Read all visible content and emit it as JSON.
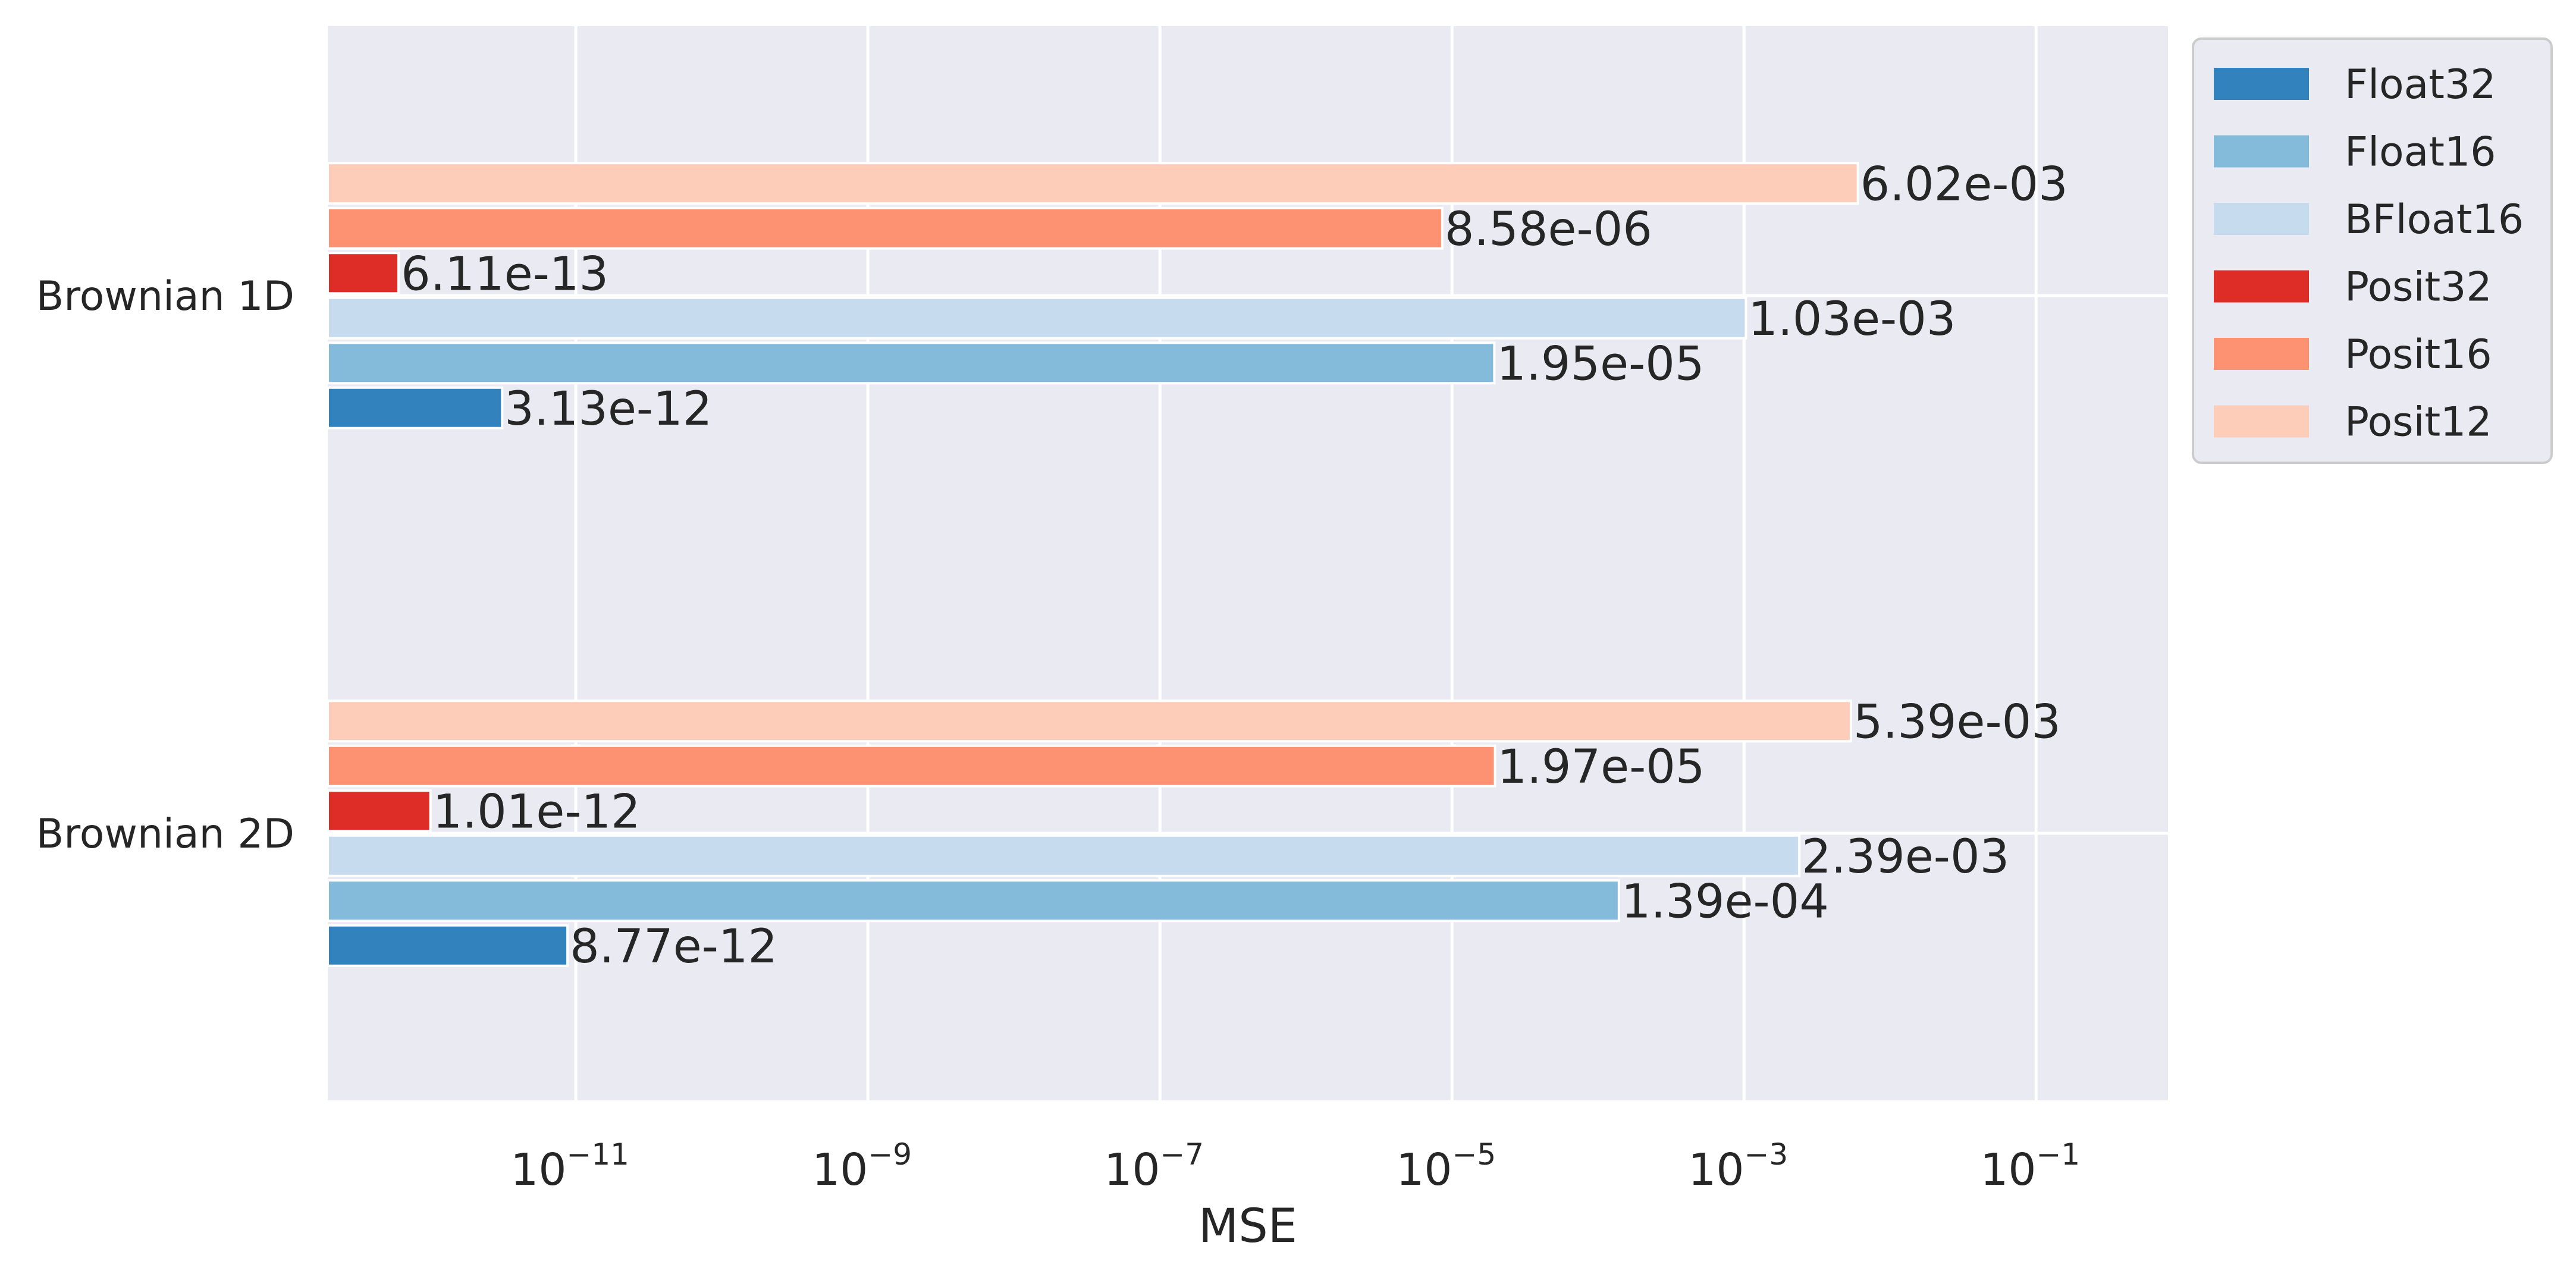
{
  "chart_data": {
    "type": "bar",
    "orientation": "horizontal",
    "categories": [
      "Brownian 1D",
      "Brownian 2D"
    ],
    "series": [
      {
        "name": "Float32",
        "color": "#3182bd",
        "values": [
          3.13e-12,
          8.77e-12
        ],
        "labels": [
          "3.13e-12",
          "8.77e-12"
        ]
      },
      {
        "name": "Float16",
        "color": "#85bbda",
        "values": [
          1.95e-05,
          0.000139
        ],
        "labels": [
          "1.95e-05",
          "1.39e-04"
        ]
      },
      {
        "name": "BFloat16",
        "color": "#c7dbef",
        "values": [
          0.00103,
          0.00239
        ],
        "labels": [
          "1.03e-03",
          "2.39e-03"
        ]
      },
      {
        "name": "Posit32",
        "color": "#de2d26",
        "values": [
          6.11e-13,
          1.01e-12
        ],
        "labels": [
          "6.11e-13",
          "1.01e-12"
        ]
      },
      {
        "name": "Posit16",
        "color": "#fc9272",
        "values": [
          8.58e-06,
          1.97e-05
        ],
        "labels": [
          "8.58e-06",
          "1.97e-05"
        ]
      },
      {
        "name": "Posit12",
        "color": "#fdcdb9",
        "values": [
          0.00602,
          0.00539
        ],
        "labels": [
          "6.02e-03",
          "5.39e-03"
        ]
      }
    ],
    "xlabel": "MSE",
    "xscale": "log",
    "xlim": [
      2e-13,
      0.8
    ],
    "xticks": [
      {
        "value": 1e-11,
        "base": "10",
        "exp": "−11"
      },
      {
        "value": 1e-09,
        "base": "10",
        "exp": "−9"
      },
      {
        "value": 1e-07,
        "base": "10",
        "exp": "−7"
      },
      {
        "value": 1e-05,
        "base": "10",
        "exp": "−5"
      },
      {
        "value": 0.001,
        "base": "10",
        "exp": "−3"
      },
      {
        "value": 0.1,
        "base": "10",
        "exp": "−1"
      }
    ],
    "grid": true,
    "legend_position": "outside-top-right",
    "style": {
      "background": "#eaeaf2",
      "grid_color": "#ffffff"
    }
  }
}
